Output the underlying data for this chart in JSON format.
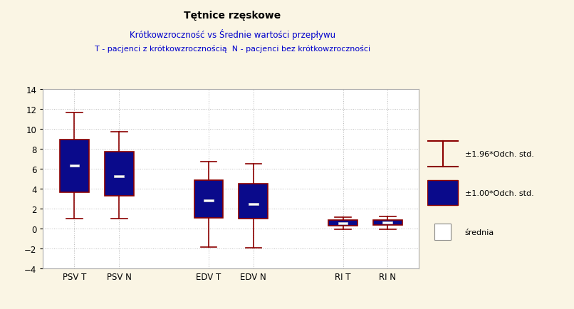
{
  "title1": "Tętnice rzęskowe",
  "title2": "Krótkowzroczność vs Średnie wartości przepływu",
  "title3": "T - pacjenci z krótkowzrocznością  N - pacjenci bez krótkowzroczności",
  "background_color": "#FAF5E4",
  "plot_bg_color": "#FFFFFF",
  "box_color": "#0A0A8B",
  "whisker_color": "#8B0000",
  "mean_color": "#FFFFFF",
  "grid_color": "#BBBBBB",
  "ylim": [
    -4,
    14
  ],
  "yticks": [
    -4,
    -2,
    0,
    2,
    4,
    6,
    8,
    10,
    12,
    14
  ],
  "groups": [
    {
      "label": "PSV T",
      "mean": 6.33,
      "std1_lo": 3.69,
      "std1_hi": 8.97,
      "std196_lo": 1.0,
      "std196_hi": 11.65,
      "x": 1
    },
    {
      "label": "PSV N",
      "mean": 5.3,
      "std1_lo": 3.3,
      "std1_hi": 7.7,
      "std196_lo": 1.0,
      "std196_hi": 9.7,
      "x": 2
    },
    {
      "label": "EDV T",
      "mean": 2.83,
      "std1_lo": 1.1,
      "std1_hi": 4.9,
      "std196_lo": -1.8,
      "std196_hi": 6.75,
      "x": 4
    },
    {
      "label": "EDV N",
      "mean": 2.5,
      "std1_lo": 1.0,
      "std1_hi": 4.5,
      "std196_lo": -1.9,
      "std196_hi": 6.5,
      "x": 5
    },
    {
      "label": "RI T",
      "mean": 0.58,
      "std1_lo": 0.31,
      "std1_hi": 0.85,
      "std196_lo": -0.03,
      "std196_hi": 1.19,
      "x": 7
    },
    {
      "label": "RI N",
      "mean": 0.62,
      "std1_lo": 0.35,
      "std1_hi": 0.89,
      "std196_lo": -0.03,
      "std196_hi": 1.27,
      "x": 8
    }
  ],
  "box_width": 0.65,
  "legend_items": [
    "±1.96*Odch. std.",
    "±1.00*Odch. std.",
    "średnia"
  ],
  "title1_color": "#000000",
  "title2_color": "#0000CC",
  "title3_color": "#0000CC"
}
